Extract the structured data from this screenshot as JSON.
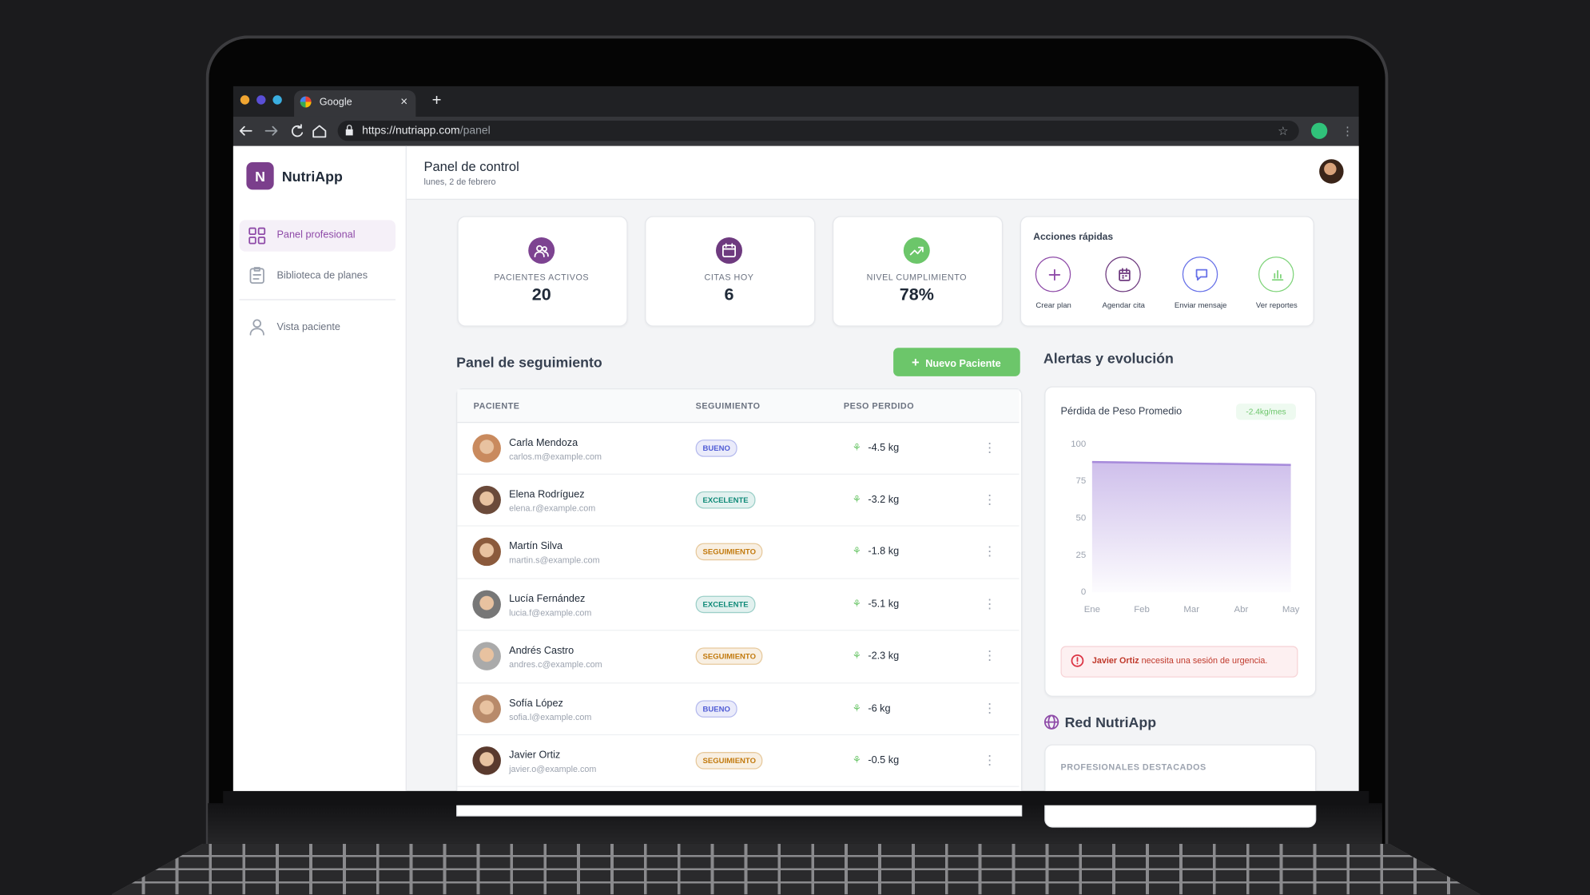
{
  "browser": {
    "tab_title": "Google",
    "url_host": "https://nutriapp.com",
    "url_path": "/panel"
  },
  "sidebar": {
    "brand_initial": "N",
    "brand": "NutriApp",
    "nav": [
      "Panel profesional",
      "Biblioteca de planes",
      "Vista paciente"
    ]
  },
  "header": {
    "title": "Panel de control",
    "date": "lunes, 2 de febrero"
  },
  "stats": [
    {
      "label": "PACIENTES ACTIVOS",
      "value": "20",
      "color": "#7d4391"
    },
    {
      "label": "CITAS HOY",
      "value": "6",
      "color": "#6e3a7f"
    },
    {
      "label": "NIVEL CUMPLIMIENTO",
      "value": "78%",
      "color": "#6cc66a"
    }
  ],
  "quick_actions": {
    "title": "Acciones rápidas",
    "items": [
      {
        "label": "Crear plan",
        "color": "#8e4aa8"
      },
      {
        "label": "Agendar cita",
        "color": "#6e3a7f"
      },
      {
        "label": "Enviar mensaje",
        "color": "#6670e8"
      },
      {
        "label": "Ver reportes",
        "color": "#7fd47a"
      }
    ]
  },
  "tracking": {
    "title": "Panel de seguimiento",
    "button": "Nuevo Paciente",
    "columns": [
      "PACIENTE",
      "SEGUIMIENTO",
      "PESO PERDIDO"
    ],
    "rows": [
      {
        "name": "Carla Mendoza",
        "email": "carlos.m@example.com",
        "status": "BUENO",
        "status_color": "#4f5bd5",
        "weight": "-4.5 kg"
      },
      {
        "name": "Elena Rodríguez",
        "email": "elena.r@example.com",
        "status": "EXCELENTE",
        "status_color": "#0f8a78",
        "weight": "-3.2 kg"
      },
      {
        "name": "Martín Silva",
        "email": "martin.s@example.com",
        "status": "SEGUIMIENTO",
        "status_color": "#c27a0e",
        "weight": "-1.8 kg"
      },
      {
        "name": "Lucía Fernández",
        "email": "lucia.f@example.com",
        "status": "EXCELENTE",
        "status_color": "#0f8a78",
        "weight": "-5.1 kg"
      },
      {
        "name": "Andrés Castro",
        "email": "andres.c@example.com",
        "status": "SEGUIMIENTO",
        "status_color": "#c27a0e",
        "weight": "-2.3 kg"
      },
      {
        "name": "Sofía López",
        "email": "sofia.l@example.com",
        "status": "BUENO",
        "status_color": "#4f5bd5",
        "weight": "-6 kg"
      },
      {
        "name": "Javier Ortiz",
        "email": "javier.o@example.com",
        "status": "SEGUIMIENTO",
        "status_color": "#c27a0e",
        "weight": "-0.5 kg"
      }
    ]
  },
  "alerts": {
    "title": "Alertas y evolución",
    "alert_name": "Javier Ortiz",
    "alert_text": "necesita una sesión de urgencia."
  },
  "chart_data": {
    "type": "area",
    "title": "Pérdida de Peso Promedio",
    "annotation": "-2.4kg/mes",
    "categories": [
      "Ene",
      "Feb",
      "Mar",
      "Abr",
      "May"
    ],
    "values": [
      88,
      87.5,
      87,
      86.5,
      86
    ],
    "color": "#a78bdb",
    "ylim": [
      0,
      100
    ],
    "yticks": [
      0,
      25,
      50,
      75,
      100
    ],
    "grid": false
  },
  "network": {
    "title": "Red NutriApp",
    "subtitle": "PROFESIONALES DESTACADOS"
  }
}
